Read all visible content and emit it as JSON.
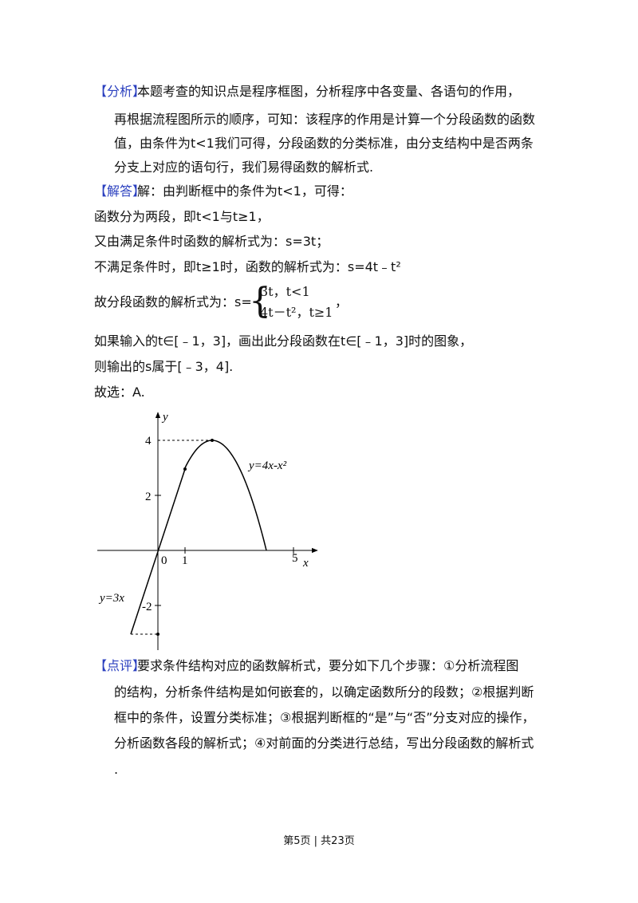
{
  "analysis": {
    "label": "【分析】",
    "lines": [
      "本题考查的知识点是程序框图，分析程序中各变量、各语句的作用，",
      "再根据流程图所示的顺序，可知：该程序的作用是计算一个分段函数的函数",
      "值，由条件为t<1我们可得，分段函数的分类标准，由分支结构中是否两条",
      "分支上对应的语句行，我们易得函数的解析式."
    ]
  },
  "solution": {
    "label": "【解答】",
    "lines": [
      "解：由判断框中的条件为t<1，可得：",
      "函数分为两段，即t<1与t≥1，",
      "又由满足条件时函数的解析式为：s=3t；",
      "不满足条件时，即t≥1时，函数的解析式为：s=4t﹣t²"
    ],
    "piecewise": {
      "prefix": "故分段函数的解析式为：s=",
      "rows": [
        "3t，t<1",
        "4t－t²，t≥1"
      ],
      "suffix": "，"
    },
    "after": [
      "如果输入的t∈[﹣1，3]，画出此分段函数在t∈[﹣1，3]时的图象，",
      "则输出的s属于[﹣3，4].",
      "故选：A."
    ]
  },
  "figure": {
    "y_axis": "y",
    "x_axis": "x",
    "y_ticks": [
      "4",
      "2",
      "-2"
    ],
    "x_ticks": [
      "0",
      "1",
      "5"
    ],
    "curve_label": "y=4x-x²",
    "line_label": "y=3x"
  },
  "comment": {
    "label": "【点评】",
    "lines": [
      "要求条件结构对应的函数解析式，要分如下几个步骤：①分析流程图",
      "的结构，分析条件结构是如何嵌套的，以确定函数所分的段数；②根据判断",
      "框中的条件，设置分类标准；③根据判断框的“是”与“否”分支对应的操作，",
      "分析函数各段的解析式；④对前面的分类进行总结，写出分段函数的解析式",
      "."
    ]
  },
  "footer": "第5页 | 共23页"
}
